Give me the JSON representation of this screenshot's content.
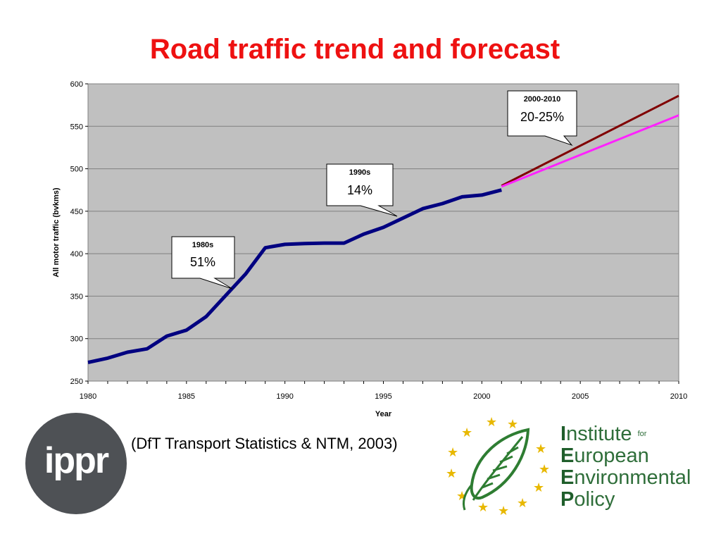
{
  "title": "Road traffic trend and forecast",
  "source_note": "(DfT Transport Statistics & NTM, 2003)",
  "logos": {
    "ippr": "ippr",
    "ieep": {
      "line1_first": "I",
      "line1_rest": "nstitute",
      "line1_for": "for",
      "line2_first": "E",
      "line2_rest": "uropean",
      "line3_first": "E",
      "line3_rest": "nvironmental",
      "line4_first": "P",
      "line4_rest": "olicy"
    }
  },
  "colors": {
    "title": "#ee1111",
    "plot_bg": "#c0c0c0",
    "history_line": "#000080",
    "forecast_high": "#800000",
    "forecast_low": "#ff22ff"
  },
  "chart_data": {
    "type": "line",
    "xlabel": "Year",
    "ylabel": "All motor traffic (bvkms)",
    "xlim": [
      1980,
      2010
    ],
    "ylim": [
      250,
      600
    ],
    "xticks": [
      1980,
      1985,
      1990,
      1995,
      2000,
      2005,
      2010
    ],
    "yticks": [
      250,
      300,
      350,
      400,
      450,
      500,
      550,
      600
    ],
    "grid": true,
    "series": [
      {
        "x": [
          1980,
          1981,
          1982,
          1983,
          1984,
          1985,
          1986,
          1987,
          1988,
          1989,
          1990,
          1991,
          1992,
          1993,
          1994,
          1995,
          1996,
          1997,
          1998,
          1999,
          2000,
          2001
        ],
        "y": [
          272,
          277,
          284,
          288,
          303,
          310,
          326,
          351,
          376,
          407,
          411,
          412,
          412.5,
          412.5,
          423,
          431,
          442,
          453,
          459,
          467,
          469,
          475
        ]
      },
      {
        "x": [
          2001,
          2010
        ],
        "y": [
          480,
          586
        ]
      },
      {
        "x": [
          2001,
          2010
        ],
        "y": [
          479,
          563
        ]
      }
    ],
    "annotations": [
      {
        "period": "1980s",
        "value": "51%"
      },
      {
        "period": "1990s",
        "value": "14%"
      },
      {
        "period": "2000-2010",
        "value": "20-25%"
      }
    ]
  }
}
